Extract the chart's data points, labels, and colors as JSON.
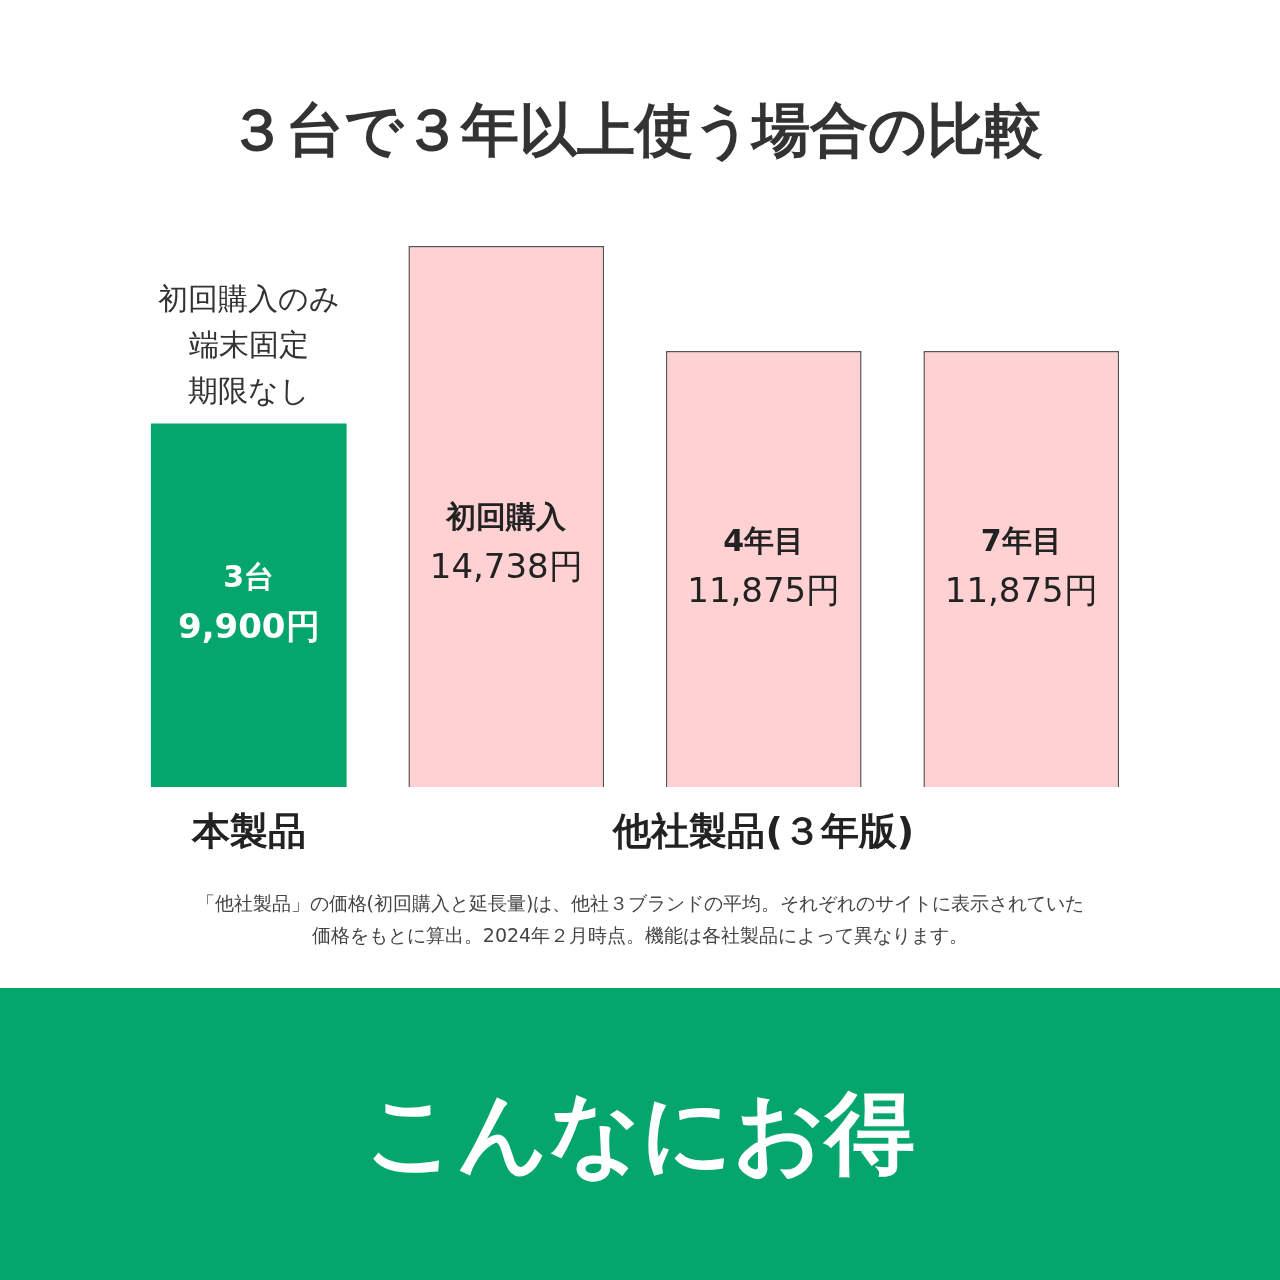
{
  "chart_data": {
    "type": "bar",
    "title": "３台で３年以上使う場合の比較",
    "categories": [
      "3台",
      "初回購入",
      "4年目",
      "7年目"
    ],
    "values": [
      9900,
      14738,
      11875,
      11875
    ],
    "value_labels": [
      "9,900円",
      "14,738円",
      "11,875円",
      "11,875円"
    ],
    "colors": [
      "#05a66b",
      "#ffd1d3",
      "#ffd1d3",
      "#ffd1d3"
    ],
    "annotations": [
      "本製品",
      "他社製品(３年版)",
      "初回購入のみ",
      "端末固定",
      "期限なし",
      "「他社製品」の価格(初回購入と延長量)は、他社３ブランドの平均。それぞれのサイトに表示されていた",
      "価格をもとに算出。2024年２月時点。機能は各社製品によって異なります。",
      "こんなにお得"
    ],
    "legend": false
  }
}
